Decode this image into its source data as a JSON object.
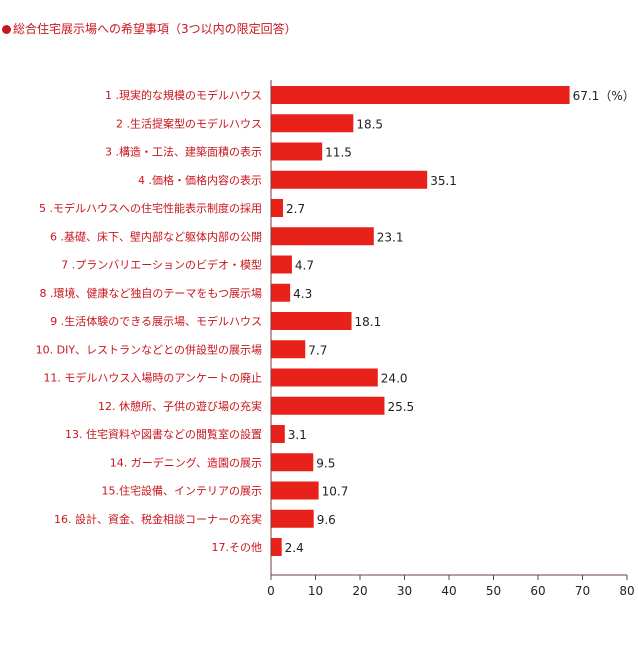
{
  "title": "総合住宅展示場への希望事項（3つ以内の限定回答）",
  "colors": {
    "bar": "#e8221b",
    "axis": "#7a3a3a",
    "label": "#c8161d"
  },
  "chart_data": {
    "type": "bar",
    "orientation": "horizontal",
    "title": "総合住宅展示場への希望事項（3つ以内の限定回答）",
    "unit": "（%）",
    "xlim": [
      0,
      80
    ],
    "ticks": [
      "0",
      "10",
      "20",
      "30",
      "40",
      "50",
      "60",
      "70",
      "80"
    ],
    "grid": false,
    "categories": [
      "1 .現実的な規模のモデルハウス",
      "2 .生活提案型のモデルハウス",
      "3 .構造・工法、建築面積の表示",
      "4 .価格・価格内容の表示",
      "5 .モデルハウスへの住宅性能表示制度の採用",
      "6 .基礎、床下、壁内部など躯体内部の公開",
      "7 .プランバリエーションのビデオ・模型",
      "8 .環境、健康など独自のテーマをもつ展示場",
      "9 .生活体験のできる展示場、モデルハウス",
      "10. DIY、レストランなどとの併設型の展示場",
      "11. モデルハウス入場時のアンケートの廃止",
      "12. 休憩所、子供の遊び場の充実",
      "13. 住宅資料や図書などの閲覧室の設置",
      "14. ガーデニング、造園の展示",
      "15.住宅設備、インテリアの展示",
      "16. 設計、資金、税金相談コーナーの充実",
      "17.その他"
    ],
    "values": [
      67.1,
      18.5,
      11.5,
      35.1,
      2.7,
      23.1,
      4.7,
      4.3,
      18.1,
      7.7,
      24.0,
      25.5,
      3.1,
      9.5,
      10.7,
      9.6,
      2.4
    ],
    "value_labels": [
      "67.1",
      "18.5",
      "11.5",
      "35.1",
      "2.7",
      "23.1",
      "4.7",
      "4.3",
      "18.1",
      "7.7",
      "24.0",
      "25.5",
      "3.1",
      "9.5",
      "10.7",
      "9.6",
      "2.4"
    ]
  }
}
